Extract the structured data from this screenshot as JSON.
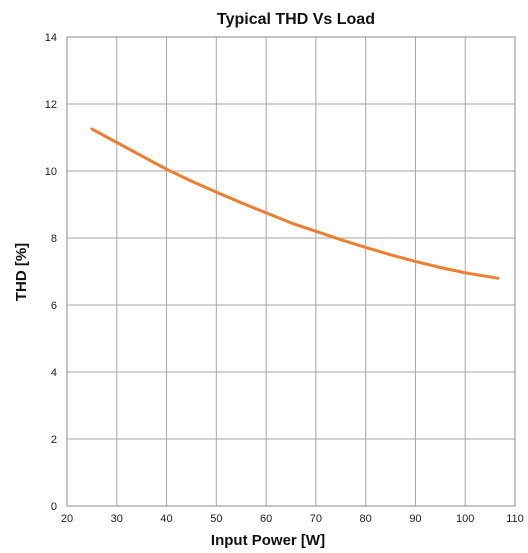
{
  "chart_data": {
    "type": "line",
    "title": "Typical THD Vs Load",
    "xlabel": "Input Power [W]",
    "ylabel": "THD [%]",
    "xlim": [
      20,
      110
    ],
    "ylim": [
      0,
      14
    ],
    "x_ticks": [
      20,
      30,
      40,
      50,
      60,
      70,
      80,
      90,
      100,
      110
    ],
    "y_ticks": [
      0,
      2,
      4,
      6,
      8,
      10,
      12,
      14
    ],
    "grid": true,
    "series": [
      {
        "color": "#ed7d31",
        "x": [
          25,
          30,
          35,
          40,
          45,
          50,
          55,
          60,
          65,
          70,
          75,
          80,
          85,
          90,
          95,
          100,
          106.5
        ],
        "y": [
          11.25,
          10.85,
          10.45,
          10.05,
          9.7,
          9.37,
          9.05,
          8.75,
          8.45,
          8.2,
          7.95,
          7.72,
          7.5,
          7.3,
          7.12,
          6.96,
          6.8
        ]
      }
    ]
  }
}
